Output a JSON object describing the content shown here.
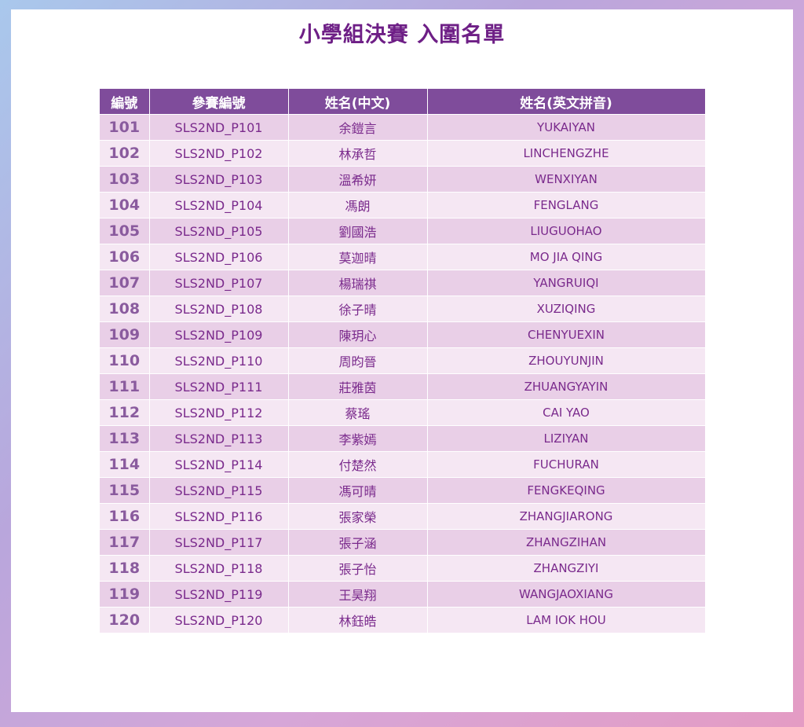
{
  "title": "小學組決賽  入圍名單",
  "headers": [
    "編號",
    "參賽編號",
    "姓名(中文)",
    "姓名(英文拼音)"
  ],
  "rows": [
    [
      "101",
      "SLS2ND_P101",
      "余鎧言",
      "YUKAIYAN"
    ],
    [
      "102",
      "SLS2ND_P102",
      "林承哲",
      "LINCHENGZHE"
    ],
    [
      "103",
      "SLS2ND_P103",
      "溫希妍",
      "WENXIYAN"
    ],
    [
      "104",
      "SLS2ND_P104",
      "馮朗",
      "FENGLANG"
    ],
    [
      "105",
      "SLS2ND_P105",
      "劉國浩",
      "LIUGUOHAO"
    ],
    [
      "106",
      "SLS2ND_P106",
      "莫迦晴",
      "MO JIA QING"
    ],
    [
      "107",
      "SLS2ND_P107",
      "楊瑞祺",
      "YANGRUIQI"
    ],
    [
      "108",
      "SLS2ND_P108",
      "徐子晴",
      "XUZIQING"
    ],
    [
      "109",
      "SLS2ND_P109",
      "陳玥心",
      "CHENYUEXIN"
    ],
    [
      "110",
      "SLS2ND_P110",
      "周昀晉",
      "ZHOUYUNJIN"
    ],
    [
      "111",
      "SLS2ND_P111",
      "莊雅茵",
      "ZHUANGYAYIN"
    ],
    [
      "112",
      "SLS2ND_P112",
      "蔡瑤",
      "CAI YAO"
    ],
    [
      "113",
      "SLS2ND_P113",
      "李紫嫣",
      "LIZIYAN"
    ],
    [
      "114",
      "SLS2ND_P114",
      "付楚然",
      "FUCHURAN"
    ],
    [
      "115",
      "SLS2ND_P115",
      "馮可晴",
      "FENGKEQING"
    ],
    [
      "116",
      "SLS2ND_P116",
      "張家榮",
      "ZHANGJIARONG"
    ],
    [
      "117",
      "SLS2ND_P117",
      "張子涵",
      "ZHANGZIHAN"
    ],
    [
      "118",
      "SLS2ND_P118",
      "張子怡",
      "ZHANGZIYI"
    ],
    [
      "119",
      "SLS2ND_P119",
      "王昊翔",
      "WANGJAOXIANG"
    ],
    [
      "120",
      "SLS2ND_P120",
      "林鈺皓",
      "LAM IOK HOU"
    ]
  ],
  "colors": {
    "header": "#7f4c9b",
    "row_odd": "#e9cfe7",
    "row_even": "#f5e7f3",
    "text": "#7a2a8c",
    "title": "#6e1f86"
  }
}
